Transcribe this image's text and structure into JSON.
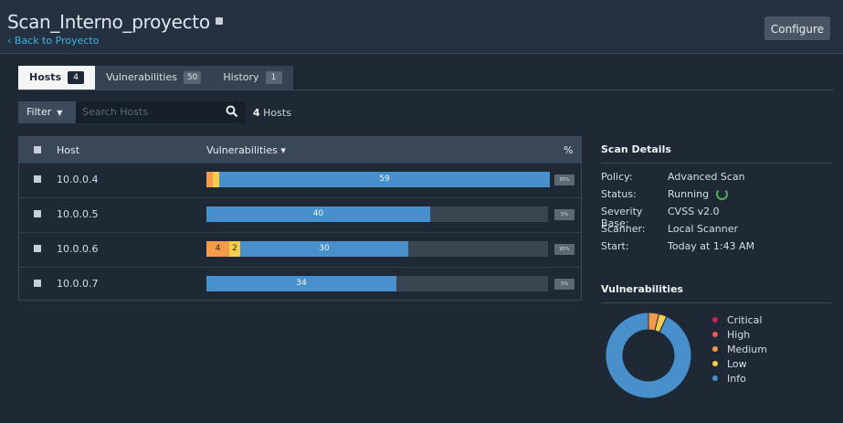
{
  "header": {
    "title": "Scan_Interno_proyecto",
    "back_link": "‹ Back to Proyecto",
    "configure_label": "Configure"
  },
  "tabs": [
    {
      "label": "Hosts",
      "count": "4",
      "active": true
    },
    {
      "label": "Vulnerabilities",
      "count": "50",
      "active": false
    },
    {
      "label": "History",
      "count": "1",
      "active": false
    }
  ],
  "toolbar": {
    "filter_label": "Filter",
    "search_placeholder": "Search Hosts",
    "host_count_number": "4",
    "host_count_suffix": "Hosts"
  },
  "table": {
    "columns": {
      "host": "Host",
      "vulnerabilities": "Vulnerabilities ▾",
      "percent": "%"
    },
    "rows": [
      {
        "host": "10.0.0.4",
        "segments": [
          {
            "severity": "medium",
            "count": 1,
            "label": ""
          },
          {
            "severity": "low",
            "count": 1,
            "label": ""
          },
          {
            "severity": "info",
            "count": 59,
            "label": "59"
          }
        ],
        "percent": "95%"
      },
      {
        "host": "10.0.0.5",
        "segments": [
          {
            "severity": "info",
            "count": 40,
            "label": "40"
          }
        ],
        "percent": "5%"
      },
      {
        "host": "10.0.0.6",
        "segments": [
          {
            "severity": "medium",
            "count": 4,
            "label": "4"
          },
          {
            "severity": "low",
            "count": 2,
            "label": "2"
          },
          {
            "severity": "info",
            "count": 30,
            "label": "30"
          }
        ],
        "percent": "95%"
      },
      {
        "host": "10.0.0.7",
        "segments": [
          {
            "severity": "info",
            "count": 34,
            "label": "34"
          }
        ],
        "percent": "5%"
      }
    ],
    "bar_max": 61
  },
  "scan_details": {
    "title": "Scan Details",
    "items": [
      {
        "label": "Policy:",
        "value": "Advanced Scan"
      },
      {
        "label": "Status:",
        "value": "Running"
      },
      {
        "label": "Severity Base:",
        "value": "CVSS v2.0"
      },
      {
        "label": "Scanner:",
        "value": "Local Scanner"
      },
      {
        "label": "Start:",
        "value": "Today at 1:43 AM"
      }
    ]
  },
  "vulnerabilities_panel": {
    "title": "Vulnerabilities",
    "donut": [
      {
        "severity": "critical",
        "fraction": 0.0
      },
      {
        "severity": "high",
        "fraction": 0.0
      },
      {
        "severity": "medium",
        "fraction": 0.04
      },
      {
        "severity": "low",
        "fraction": 0.03
      },
      {
        "severity": "info",
        "fraction": 0.93
      }
    ],
    "legend": [
      {
        "label": "Critical",
        "color": "#c9254a"
      },
      {
        "label": "High",
        "color": "#ec5a55"
      },
      {
        "label": "Medium",
        "color": "#f49a4d"
      },
      {
        "label": "Low",
        "color": "#f7ce4b"
      },
      {
        "label": "Info",
        "color": "#4890cc"
      }
    ]
  },
  "colors": {
    "medium": "#f49a4d",
    "low": "#f7ce4b",
    "info": "#4890cc",
    "critical": "#c9254a",
    "high": "#ec5a55",
    "accent": "#39b5e6",
    "running": "#4caf50"
  }
}
